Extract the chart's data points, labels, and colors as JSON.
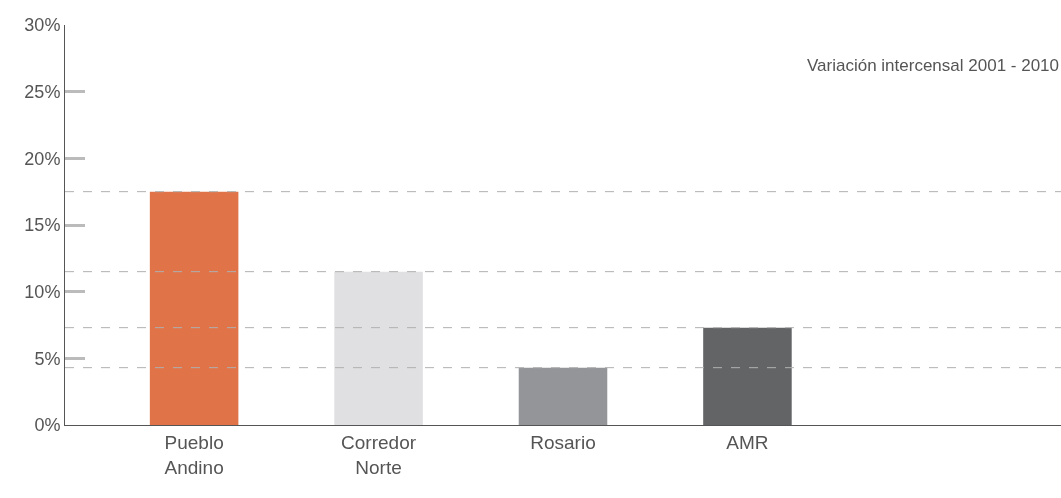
{
  "chart_data": {
    "type": "bar",
    "categories": [
      "Pueblo Andino",
      "Corredor Norte",
      "Rosario",
      "AMR",
      null
    ],
    "values": [
      17.5,
      11.5,
      4.3,
      7.3,
      null
    ],
    "colors": [
      "#e07348",
      "#e0e0e2",
      "#939598",
      "#636466",
      "#636466"
    ],
    "ylim": [
      0,
      30
    ],
    "yticks": [
      {
        "value": 0,
        "label": "0%"
      },
      {
        "value": 5,
        "label": "5%"
      },
      {
        "value": 10,
        "label": "10%"
      },
      {
        "value": 15,
        "label": "15%"
      },
      {
        "value": 20,
        "label": "20%"
      },
      {
        "value": 25,
        "label": "25%"
      },
      {
        "value": 30,
        "label": "30%"
      }
    ],
    "annotations": [
      "Variación intercensal 2001 - 2010"
    ],
    "ref_lines": [
      {
        "axis": "y",
        "value": 17.5,
        "color": "#b0b0b0",
        "line_style": "dashed"
      },
      {
        "axis": "y",
        "value": 11.5,
        "color": "#b0b0b0",
        "line_style": "dashed"
      },
      {
        "axis": "y",
        "value": 7.3,
        "color": "#b0b0b0",
        "line_style": "dashed"
      },
      {
        "axis": "y",
        "value": 4.3,
        "color": "#b0b0b0",
        "line_style": "dashed"
      }
    ],
    "legend": false
  }
}
